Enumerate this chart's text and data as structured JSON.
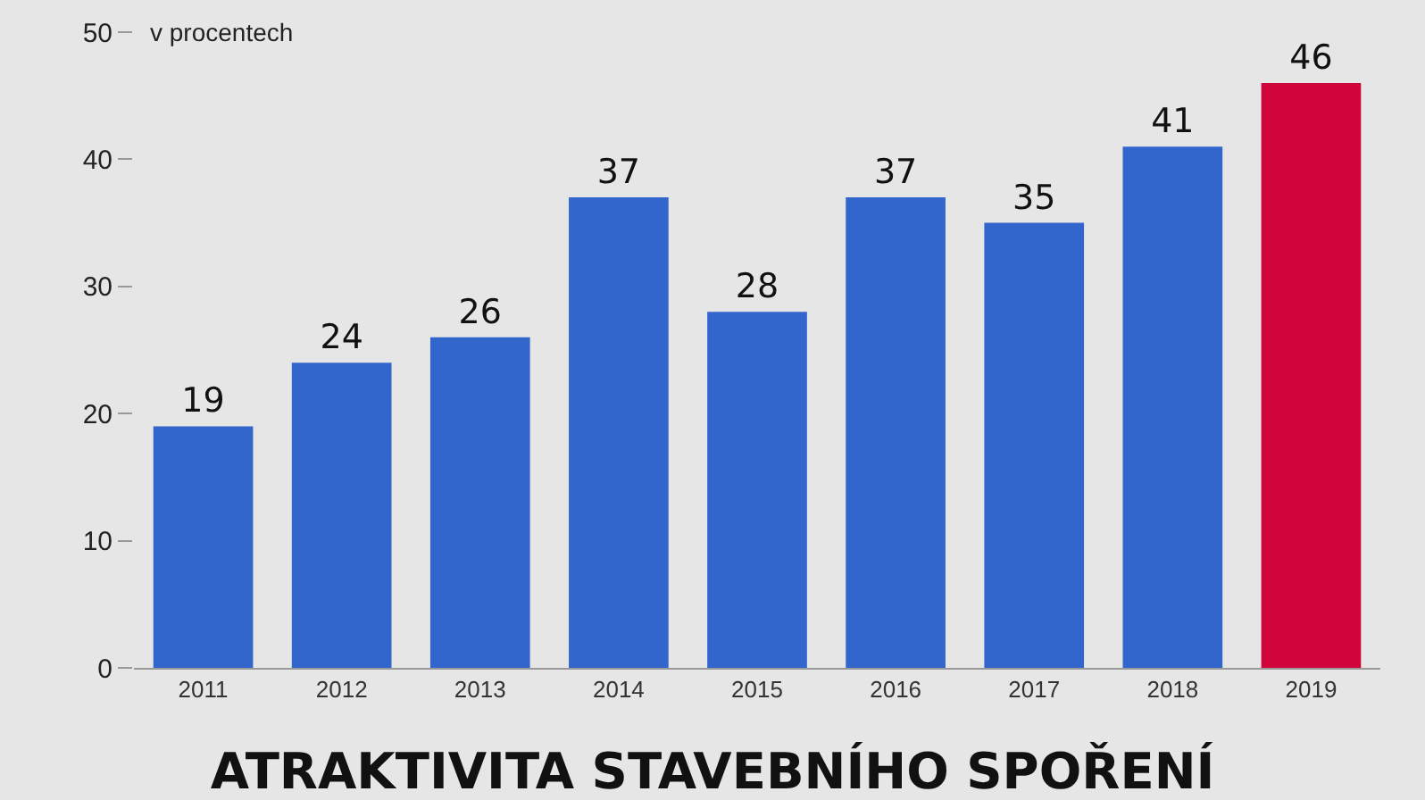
{
  "chart_data": {
    "type": "bar",
    "title": "ATRAKTIVITA STAVEBNÍHO SPOŘENÍ",
    "ylabel": "v procentech",
    "categories": [
      "2011",
      "2012",
      "2013",
      "2014",
      "2015",
      "2016",
      "2017",
      "2018",
      "2019"
    ],
    "values": [
      19,
      24,
      26,
      37,
      28,
      37,
      35,
      41,
      46
    ],
    "colors": [
      "#3366cc",
      "#3366cc",
      "#3366cc",
      "#3366cc",
      "#3366cc",
      "#3366cc",
      "#3366cc",
      "#3366cc",
      "#d0053c"
    ],
    "ylim": [
      0,
      50
    ],
    "yticks": [
      0,
      10,
      20,
      30,
      40,
      50
    ],
    "grid": false,
    "data_labels": true
  }
}
